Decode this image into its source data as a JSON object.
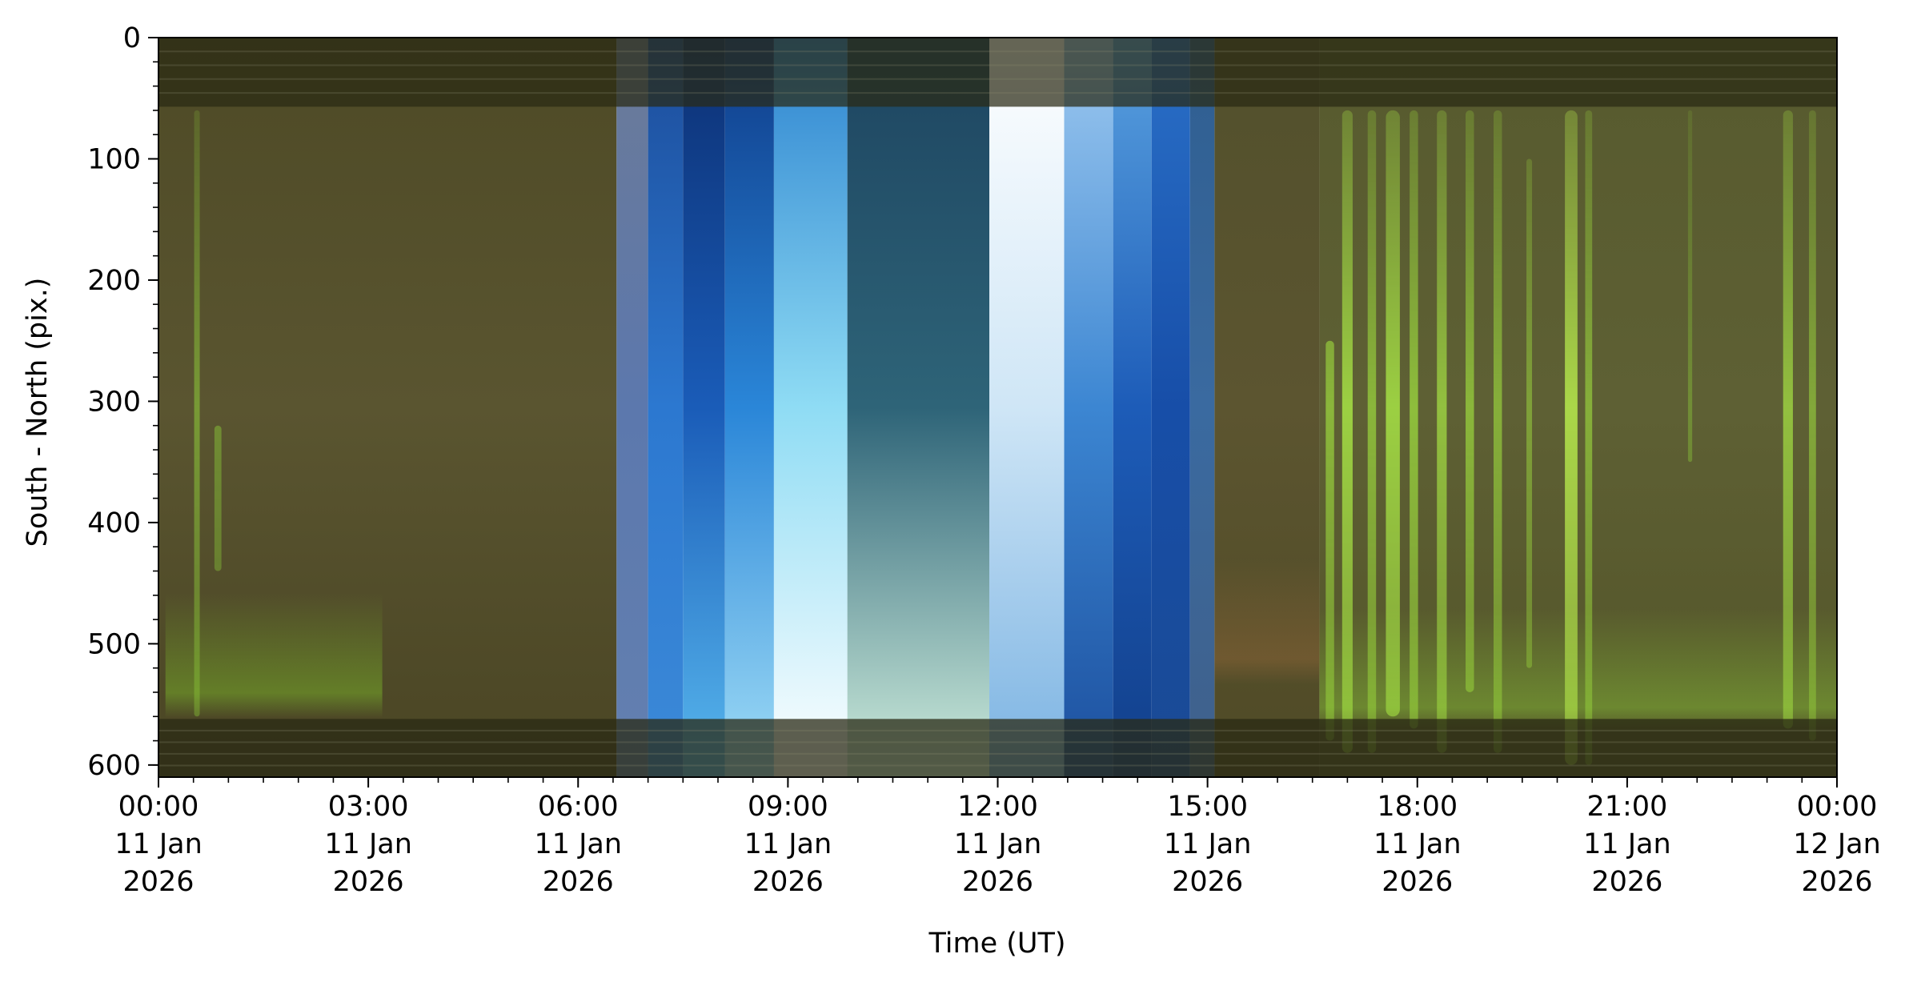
{
  "chart_data": {
    "type": "heatmap",
    "title": "",
    "xlabel": "Time (UT)",
    "ylabel": "South - North (pix.)",
    "x_unit": "hours",
    "xlim": [
      0,
      24
    ],
    "ylim": [
      610,
      0
    ],
    "y_ticks": [
      0,
      100,
      200,
      300,
      400,
      500,
      600
    ],
    "y_tick_labels": [
      "0",
      "100",
      "200",
      "300",
      "400",
      "500",
      "600"
    ],
    "x_ticks": [
      {
        "value": 0,
        "label": [
          "00:00",
          "11 Jan",
          "2026"
        ]
      },
      {
        "value": 3,
        "label": [
          "03:00",
          "11 Jan",
          "2026"
        ]
      },
      {
        "value": 6,
        "label": [
          "06:00",
          "11 Jan",
          "2026"
        ]
      },
      {
        "value": 9,
        "label": [
          "09:00",
          "11 Jan",
          "2026"
        ]
      },
      {
        "value": 12,
        "label": [
          "12:00",
          "11 Jan",
          "2026"
        ]
      },
      {
        "value": 15,
        "label": [
          "15:00",
          "11 Jan",
          "2026"
        ]
      },
      {
        "value": 18,
        "label": [
          "18:00",
          "11 Jan",
          "2026"
        ]
      },
      {
        "value": 21,
        "label": [
          "21:00",
          "11 Jan",
          "2026"
        ]
      },
      {
        "value": 24,
        "label": [
          "00:00",
          "12 Jan",
          "2026"
        ]
      }
    ],
    "x_minor_step": 0.5,
    "y_minor_step": 20,
    "grid": false,
    "legend": "none",
    "bands": [
      {
        "start": 0,
        "end": 6.55,
        "kind": "night",
        "colors": [
          "#4e4a26",
          "#5a5530",
          "#4a4524"
        ]
      },
      {
        "start": 6.55,
        "end": 7.0,
        "kind": "twilight",
        "colors": [
          "#6b7a98",
          "#5c78ad",
          "#6380b0"
        ]
      },
      {
        "start": 7.0,
        "end": 7.5,
        "kind": "sky",
        "colors": [
          "#1c4c9a",
          "#2c78d0",
          "#3c8ad8"
        ]
      },
      {
        "start": 7.5,
        "end": 8.1,
        "kind": "sky",
        "colors": [
          "#0c2f72",
          "#1a5cb8",
          "#58b8ee"
        ]
      },
      {
        "start": 8.1,
        "end": 8.8,
        "kind": "sky",
        "colors": [
          "#0e3a88",
          "#2a86d8",
          "#9fdcf6"
        ]
      },
      {
        "start": 8.8,
        "end": 9.85,
        "kind": "bright",
        "colors": [
          "#2b82cf",
          "#8fdcf4",
          "#ffffff"
        ]
      },
      {
        "start": 9.85,
        "end": 11.88,
        "kind": "day",
        "colors": [
          "#1d4460",
          "#2e6478",
          "#cfeedd"
        ]
      },
      {
        "start": 11.88,
        "end": 12.95,
        "kind": "bright",
        "colors": [
          "#ffffff",
          "#cfe6f6",
          "#7ab2e2"
        ]
      },
      {
        "start": 12.95,
        "end": 13.65,
        "kind": "sky",
        "colors": [
          "#9fcaf0",
          "#3c86d2",
          "#1c4f9e"
        ]
      },
      {
        "start": 13.65,
        "end": 14.2,
        "kind": "sky",
        "colors": [
          "#5aa2e0",
          "#1d5cb8",
          "#123f8a"
        ]
      },
      {
        "start": 14.2,
        "end": 14.75,
        "kind": "sky",
        "colors": [
          "#2a70c8",
          "#174ea8",
          "#1a4a94"
        ]
      },
      {
        "start": 14.75,
        "end": 15.1,
        "kind": "twilight",
        "colors": [
          "#2f5e90",
          "#3a6aa0",
          "#40608a"
        ]
      },
      {
        "start": 15.1,
        "end": 16.6,
        "kind": "aurora",
        "colors": [
          "#52502c",
          "#5c5530",
          "#4f4a26"
        ]
      },
      {
        "start": 16.6,
        "end": 24,
        "kind": "aurora",
        "colors": [
          "#575a2e",
          "#5e6034",
          "#535428"
        ]
      }
    ],
    "aurora_streaks": [
      {
        "t": 0.55,
        "y0": 60,
        "y1": 560,
        "width": 0.08,
        "color": "#8fd23a",
        "opacity": 0.55
      },
      {
        "t": 0.85,
        "y0": 320,
        "y1": 440,
        "width": 0.1,
        "color": "#8fd23a",
        "opacity": 0.45
      },
      {
        "t": 16.75,
        "y0": 250,
        "y1": 580,
        "width": 0.12,
        "color": "#a8f040",
        "opacity": 0.6
      },
      {
        "t": 17.0,
        "y0": 60,
        "y1": 590,
        "width": 0.15,
        "color": "#b6ff48",
        "opacity": 0.7
      },
      {
        "t": 17.35,
        "y0": 60,
        "y1": 590,
        "width": 0.12,
        "color": "#a8f040",
        "opacity": 0.6
      },
      {
        "t": 17.65,
        "y0": 60,
        "y1": 560,
        "width": 0.2,
        "color": "#b6ff48",
        "opacity": 0.7
      },
      {
        "t": 17.95,
        "y0": 60,
        "y1": 570,
        "width": 0.12,
        "color": "#a8f040",
        "opacity": 0.65
      },
      {
        "t": 18.35,
        "y0": 60,
        "y1": 590,
        "width": 0.14,
        "color": "#b6ff48",
        "opacity": 0.6
      },
      {
        "t": 18.75,
        "y0": 60,
        "y1": 540,
        "width": 0.12,
        "color": "#a8f040",
        "opacity": 0.6
      },
      {
        "t": 19.15,
        "y0": 60,
        "y1": 590,
        "width": 0.12,
        "color": "#a8f040",
        "opacity": 0.55
      },
      {
        "t": 19.6,
        "y0": 100,
        "y1": 520,
        "width": 0.08,
        "color": "#a8f040",
        "opacity": 0.45
      },
      {
        "t": 20.2,
        "y0": 60,
        "y1": 600,
        "width": 0.18,
        "color": "#c4ff50",
        "opacity": 0.75
      },
      {
        "t": 20.45,
        "y0": 60,
        "y1": 600,
        "width": 0.1,
        "color": "#a8f040",
        "opacity": 0.55
      },
      {
        "t": 21.9,
        "y0": 60,
        "y1": 350,
        "width": 0.06,
        "color": "#8fd23a",
        "opacity": 0.4
      },
      {
        "t": 23.3,
        "y0": 60,
        "y1": 570,
        "width": 0.14,
        "color": "#b6ff48",
        "opacity": 0.6
      },
      {
        "t": 23.65,
        "y0": 60,
        "y1": 580,
        "width": 0.1,
        "color": "#a8f040",
        "opacity": 0.5
      }
    ],
    "diffuse_glow": [
      {
        "start": 0.1,
        "end": 3.2,
        "y": 548,
        "color": "#7fbf2a",
        "opacity": 0.45
      },
      {
        "start": 15.1,
        "end": 16.6,
        "y": 520,
        "color": "#9a6a3a",
        "opacity": 0.4
      },
      {
        "start": 16.6,
        "end": 24,
        "y": 560,
        "color": "#8fd23a",
        "opacity": 0.4
      }
    ],
    "edge_strips": [
      {
        "y0": 0,
        "y1": 57,
        "color": "#2a2a14",
        "opacity": 0.72
      },
      {
        "y0": 562,
        "y1": 610,
        "color": "#2a2a14",
        "opacity": 0.75
      }
    ]
  }
}
